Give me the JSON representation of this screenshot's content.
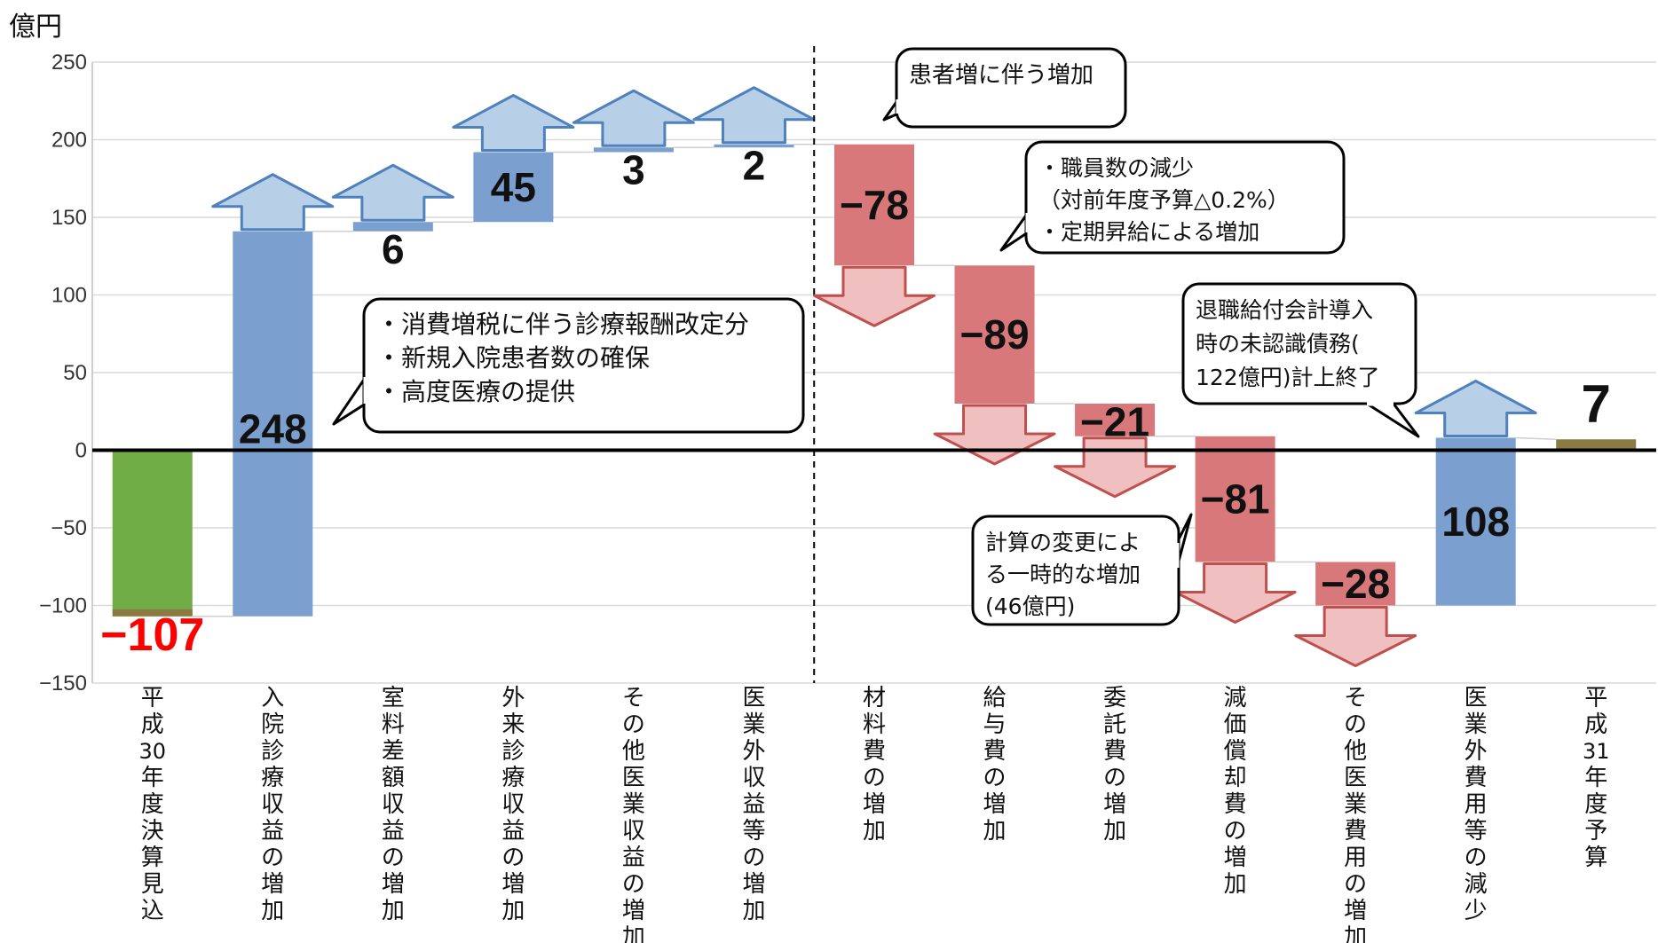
{
  "chart_data": {
    "type": "bar",
    "subtype": "waterfall",
    "ylabel": "億円",
    "ylim": [
      -150,
      250
    ],
    "yticks": [
      250,
      200,
      150,
      100,
      50,
      0,
      -50,
      -100,
      -150
    ],
    "yticks_text": [
      "250",
      "200",
      "150",
      "100",
      "50",
      "0",
      "−50",
      "−100",
      "−150"
    ],
    "grid": true,
    "colors": {
      "start": "#70ad47",
      "start_base": "#8c7a43",
      "increase": "#7b9fcf",
      "decrease": "#d9787a",
      "end": "#8c7a43",
      "up_arrow_fill": "#b8cfe8",
      "up_arrow_stroke": "#4f81bd",
      "down_arrow_fill": "#f0c0c0",
      "down_arrow_stroke": "#c0504d",
      "negative_label": "#ff0000"
    },
    "bars": [
      {
        "category": "平成30年度決算見込",
        "kind": "start",
        "start": 0,
        "end": -107,
        "value": -107,
        "label": "−107",
        "arrow": "none",
        "label_red": true
      },
      {
        "category": "入院診療収益の増加",
        "kind": "increase",
        "start": -107,
        "end": 141,
        "value": 248,
        "label": "248",
        "arrow": "up"
      },
      {
        "category": "室料差額収益の増加",
        "kind": "increase",
        "start": 141,
        "end": 147,
        "value": 6,
        "label": "6",
        "arrow": "up"
      },
      {
        "category": "外来診療収益の増加",
        "kind": "increase",
        "start": 147,
        "end": 192,
        "value": 45,
        "label": "45",
        "arrow": "up"
      },
      {
        "category": "その他医業収益の増加",
        "kind": "increase",
        "start": 192,
        "end": 195,
        "value": 3,
        "label": "3",
        "arrow": "up"
      },
      {
        "category": "医業外収益等の増加",
        "kind": "increase",
        "start": 195,
        "end": 197,
        "value": 2,
        "label": "2",
        "arrow": "up"
      },
      {
        "category": "材料費の増加",
        "kind": "decrease",
        "start": 197,
        "end": 119,
        "value": -78,
        "label": "−78",
        "arrow": "down"
      },
      {
        "category": "給与費の増加",
        "kind": "decrease",
        "start": 119,
        "end": 30,
        "value": -89,
        "label": "−89",
        "arrow": "down"
      },
      {
        "category": "委託費の増加",
        "kind": "decrease",
        "start": 30,
        "end": 9,
        "value": -21,
        "label": "−21",
        "arrow": "down"
      },
      {
        "category": "減価償却費の増加",
        "kind": "decrease",
        "start": 9,
        "end": -72,
        "value": -81,
        "label": "−81",
        "arrow": "down"
      },
      {
        "category": "その他医業費用の増加",
        "kind": "decrease",
        "start": -72,
        "end": -100,
        "value": -28,
        "label": "−28",
        "arrow": "down"
      },
      {
        "category": "医業外費用等の減少",
        "kind": "increase",
        "start": -100,
        "end": 8,
        "value": 108,
        "label": "108",
        "arrow": "up"
      },
      {
        "category": "平成31年度予算",
        "kind": "end",
        "start": 0,
        "end": 7,
        "value": 7,
        "label": "7",
        "arrow": "none"
      }
    ],
    "annotations": [
      {
        "id": "callout-inpatient",
        "lines": [
          "・消費増税に伴う診療報酬改定分",
          "・新規入院患者数の確保",
          "・高度医療の提供"
        ]
      },
      {
        "id": "callout-patients",
        "lines": [
          "患者増に伴う増加"
        ]
      },
      {
        "id": "callout-staff",
        "lines": [
          "・職員数の減少",
          "（対前年度予算△0.2%）",
          "・定期昇給による増加"
        ]
      },
      {
        "id": "callout-retirement",
        "lines": [
          "退職給付会計導入",
          "時の未認識債務(",
          "122億円)計上終了"
        ]
      },
      {
        "id": "callout-calc",
        "lines": [
          "計算の変更によ",
          "る一時的な増加",
          "(46億円)"
        ]
      }
    ]
  }
}
